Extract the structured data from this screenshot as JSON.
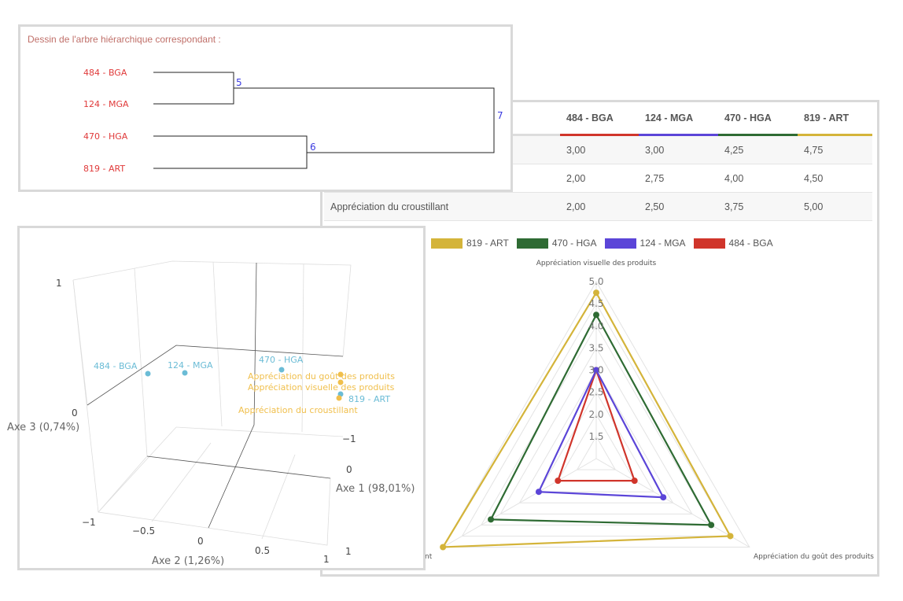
{
  "dendrogram": {
    "title": "Dessin de l'arbre hiérarchique correspondant :",
    "leaves": [
      "484 - BGA",
      "124 - MGA",
      "470 - HGA",
      "819 - ART"
    ],
    "nodes": [
      {
        "label": "5",
        "joins": [
          "484 - BGA",
          "124 - MGA"
        ]
      },
      {
        "label": "6",
        "joins": [
          "470 - HGA",
          "819 - ART"
        ]
      },
      {
        "label": "7",
        "joins": [
          "5",
          "6"
        ]
      }
    ]
  },
  "table": {
    "columns": [
      "484 - BGA",
      "124 - MGA",
      "470 - HGA",
      "819 - ART"
    ],
    "column_colors": [
      "#d0352b",
      "#5b45d8",
      "#2e6b33",
      "#d4b43a"
    ],
    "rows": [
      {
        "label": "",
        "values": [
          "3,00",
          "3,00",
          "4,25",
          "4,75"
        ]
      },
      {
        "label": "",
        "values": [
          "2,00",
          "2,75",
          "4,00",
          "4,50"
        ]
      },
      {
        "label": "Appréciation du croustillant",
        "values": [
          "2,00",
          "2,50",
          "3,75",
          "5,00"
        ]
      }
    ]
  },
  "chart_data": [
    {
      "type": "radar",
      "axes": [
        "Appréciation visuelle des produits",
        "Appréciation du goût des produits",
        "Appréciation du croustillant"
      ],
      "axis_visible_labels": [
        "Appréciation visuelle des produits",
        "Appréciation du goût des produits",
        "nt"
      ],
      "range": [
        1,
        5
      ],
      "ticks": [
        "1.5",
        "2.0",
        "2.5",
        "3.0",
        "3.5",
        "4.0",
        "4.5",
        "5.0"
      ],
      "legend_position": "top",
      "series": [
        {
          "name": "819 - ART",
          "color": "#d4b43a",
          "values": [
            4.75,
            4.5,
            5.0
          ]
        },
        {
          "name": "470 - HGA",
          "color": "#2e6b33",
          "values": [
            4.25,
            4.0,
            3.75
          ]
        },
        {
          "name": "124 - MGA",
          "color": "#5b45d8",
          "values": [
            3.0,
            2.75,
            2.5
          ]
        },
        {
          "name": "484 - BGA",
          "color": "#d0352b",
          "values": [
            3.0,
            2.0,
            2.0
          ]
        }
      ]
    },
    {
      "type": "scatter3d",
      "axes": {
        "x": "Axe 1 (98,01%)",
        "y": "Axe 2 (1,26%)",
        "z": "Axe 3 (0,74%)"
      },
      "ticks": {
        "z": [
          "1",
          "0",
          "−1"
        ],
        "y": [
          "−0.5",
          "0",
          "0.5",
          "1"
        ],
        "x": [
          "−1",
          "0",
          "1"
        ]
      },
      "points": [
        {
          "label": "484 - BGA",
          "group": "individuals",
          "color": "#6bbcd6"
        },
        {
          "label": "124 - MGA",
          "group": "individuals",
          "color": "#6bbcd6"
        },
        {
          "label": "470 - HGA",
          "group": "individuals",
          "color": "#6bbcd6"
        },
        {
          "label": "819 - ART",
          "group": "individuals",
          "color": "#6bbcd6"
        },
        {
          "label": "Appréciation du goût des produits",
          "group": "variables",
          "color": "#f0bf4c"
        },
        {
          "label": "Appréciation visuelle des produits",
          "group": "variables",
          "color": "#f0bf4c"
        },
        {
          "label": "Appréciation du croustillant",
          "group": "variables",
          "color": "#f0bf4c"
        }
      ]
    }
  ]
}
